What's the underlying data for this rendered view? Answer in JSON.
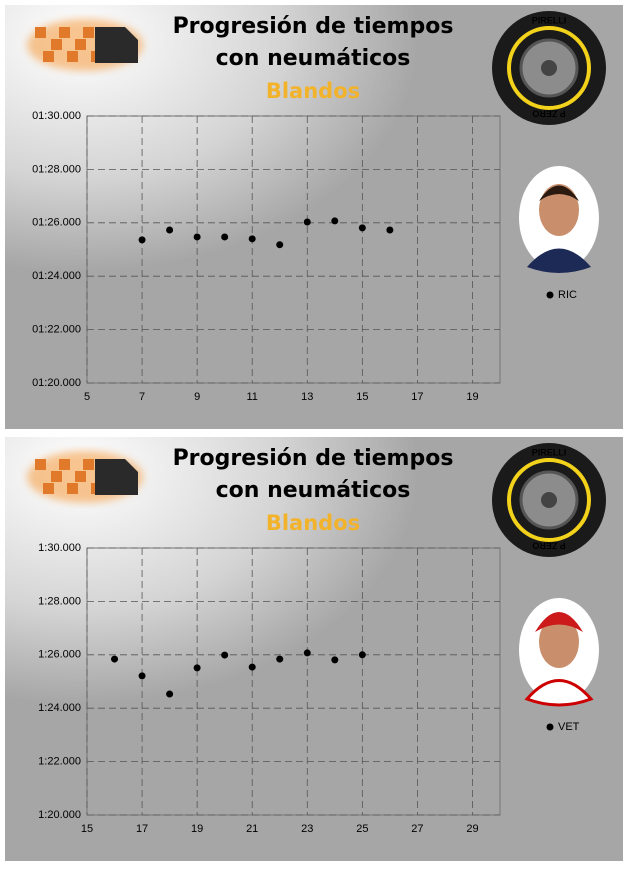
{
  "chart_data": [
    {
      "type": "scatter",
      "title": [
        "Progresión de tiempos",
        "con neumáticos"
      ],
      "subtitle": "Blandos",
      "tire_brand": "PIRELLI",
      "tire_label": "P ZERO",
      "xlim": [
        5,
        20
      ],
      "xticks": [
        5,
        7,
        9,
        11,
        13,
        15,
        17,
        19
      ],
      "ylim": [
        80,
        90
      ],
      "yticks": [
        {
          "value": 80,
          "label": "01:20.000"
        },
        {
          "value": 82,
          "label": "01:22.000"
        },
        {
          "value": 84,
          "label": "01:24.000"
        },
        {
          "value": 86,
          "label": "01:26.000"
        },
        {
          "value": 88,
          "label": "01:28.000"
        },
        {
          "value": 90,
          "label": "01:30.000"
        }
      ],
      "grid": true,
      "series": [
        {
          "name": "RIC",
          "color": "#000000",
          "x": [
            7,
            8,
            9,
            10,
            11,
            12,
            13,
            14,
            15,
            16
          ],
          "values": [
            85.36,
            85.73,
            85.47,
            85.47,
            85.4,
            85.18,
            86.03,
            86.07,
            85.81,
            85.73
          ]
        }
      ]
    },
    {
      "type": "scatter",
      "title": [
        "Progresión de tiempos",
        "con neumáticos"
      ],
      "subtitle": "Blandos",
      "tire_brand": "PIRELLI",
      "tire_label": "P ZERO",
      "xlim": [
        15,
        30
      ],
      "xticks": [
        15,
        17,
        19,
        21,
        23,
        25,
        27,
        29
      ],
      "ylim": [
        80,
        90
      ],
      "yticks": [
        {
          "value": 80,
          "label": "1:20.000"
        },
        {
          "value": 82,
          "label": "1:22.000"
        },
        {
          "value": 84,
          "label": "1:24.000"
        },
        {
          "value": 86,
          "label": "1:26.000"
        },
        {
          "value": 88,
          "label": "1:28.000"
        },
        {
          "value": 90,
          "label": "1:30.000"
        }
      ],
      "grid": true,
      "series": [
        {
          "name": "VET",
          "color": "#000000",
          "x": [
            16,
            17,
            18,
            19,
            20,
            21,
            22,
            23,
            24,
            25
          ],
          "values": [
            85.84,
            85.21,
            84.53,
            85.51,
            85.99,
            85.54,
            85.84,
            86.07,
            85.81,
            86.0
          ]
        }
      ]
    }
  ]
}
